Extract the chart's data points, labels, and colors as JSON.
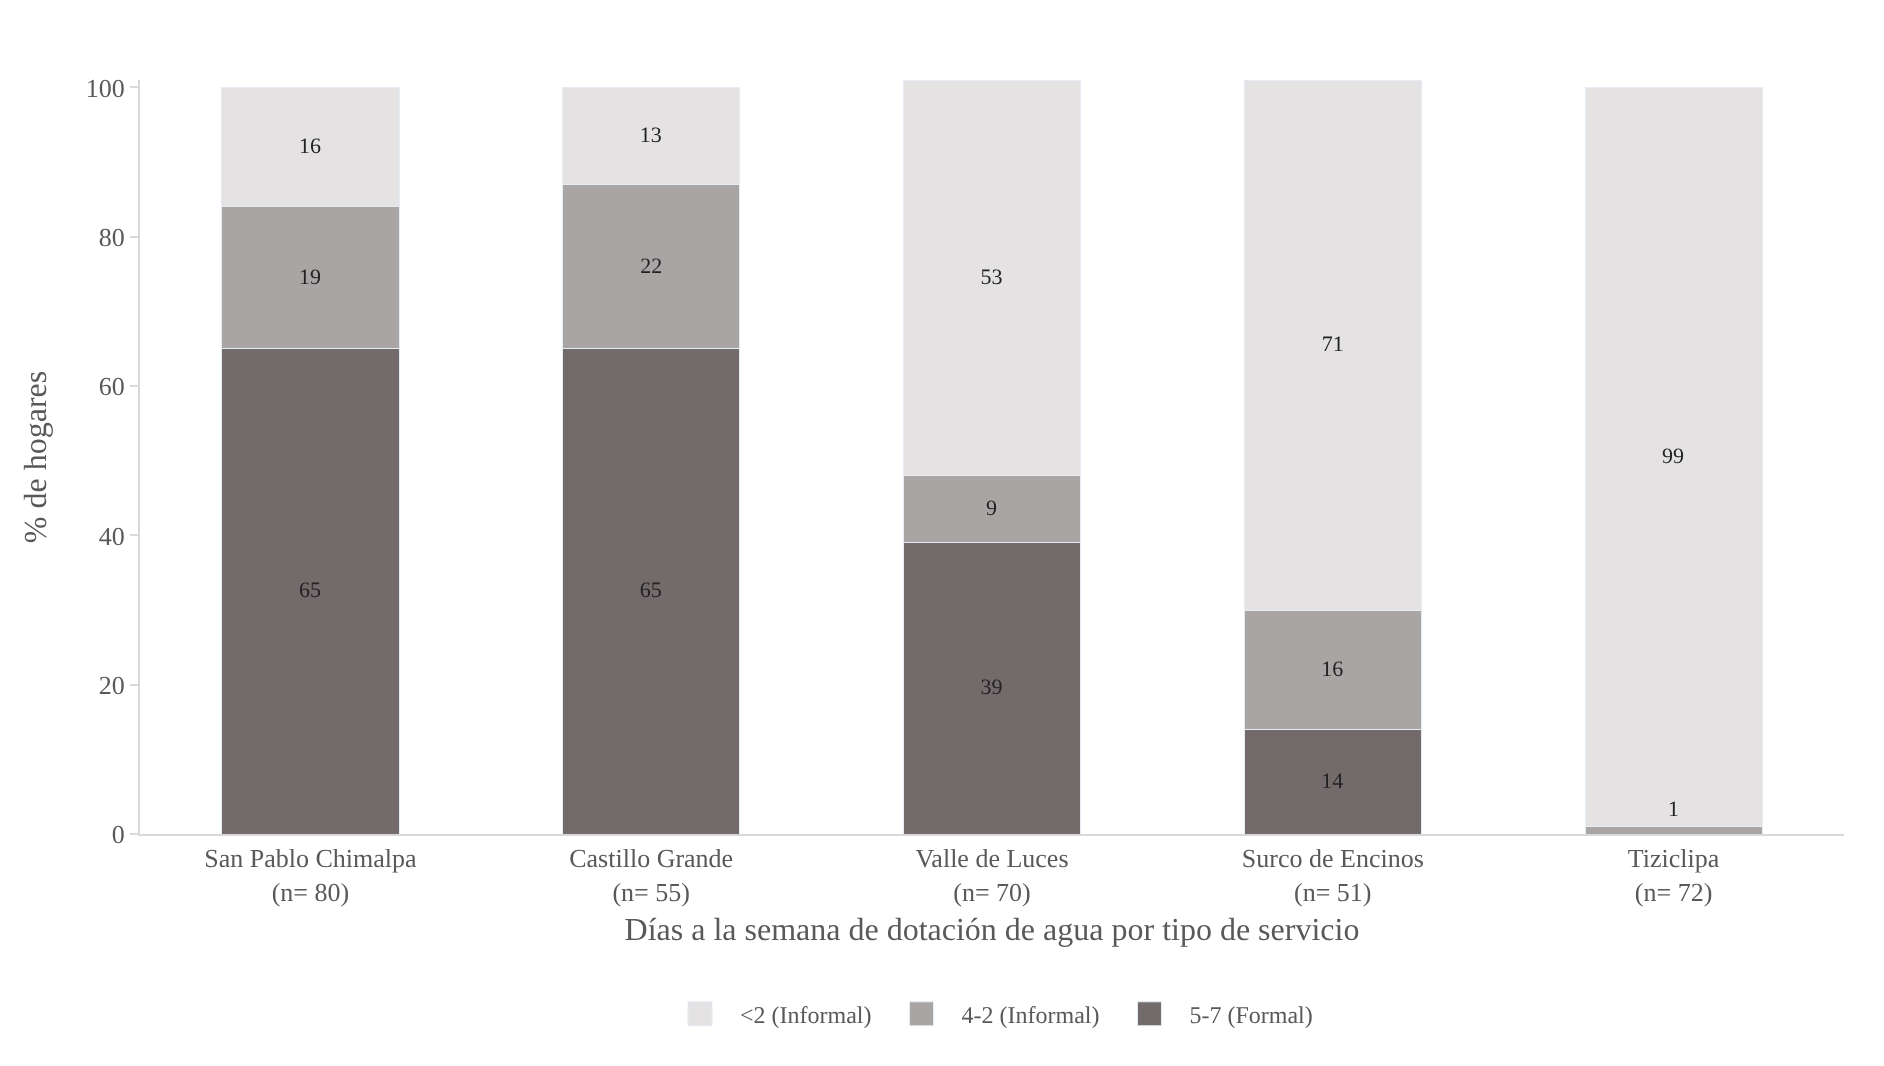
{
  "chart_data": {
    "type": "bar",
    "stacked": true,
    "xlabel": "Días a la semana de dotación de agua por tipo de servicio",
    "ylabel": "% de hogares",
    "categories": [
      "San Pablo Chimalpa\n(n= 80)",
      "Castillo Grande\n(n= 55)",
      "Valle de Luces\n(n= 70)",
      "Surco de Encinos\n(n= 51)",
      "Tiziclipa\n(n= 72)"
    ],
    "series": [
      {
        "name": "5-7 (Formal)",
        "color": "#736b6b",
        "values": [
          65,
          65,
          39,
          14,
          0
        ],
        "value_labels": [
          "65",
          "65",
          "39",
          "14",
          null
        ]
      },
      {
        "name": "4-2 (Informal)",
        "color": "#aaa5a5",
        "values": [
          19,
          22,
          9,
          16,
          1
        ],
        "value_labels": [
          "19",
          "22",
          "9",
          "16",
          "1"
        ]
      },
      {
        "name": "<2 (Informal)",
        "color": "#e5e2e3",
        "values": [
          16,
          13,
          53,
          71,
          99
        ],
        "value_labels": [
          "16",
          "13",
          "53",
          "71",
          "99"
        ]
      }
    ],
    "ylim": [
      0,
      101
    ],
    "yticks": [
      0,
      20,
      40,
      60,
      80,
      100
    ],
    "grid": false,
    "legend": "bottom"
  }
}
